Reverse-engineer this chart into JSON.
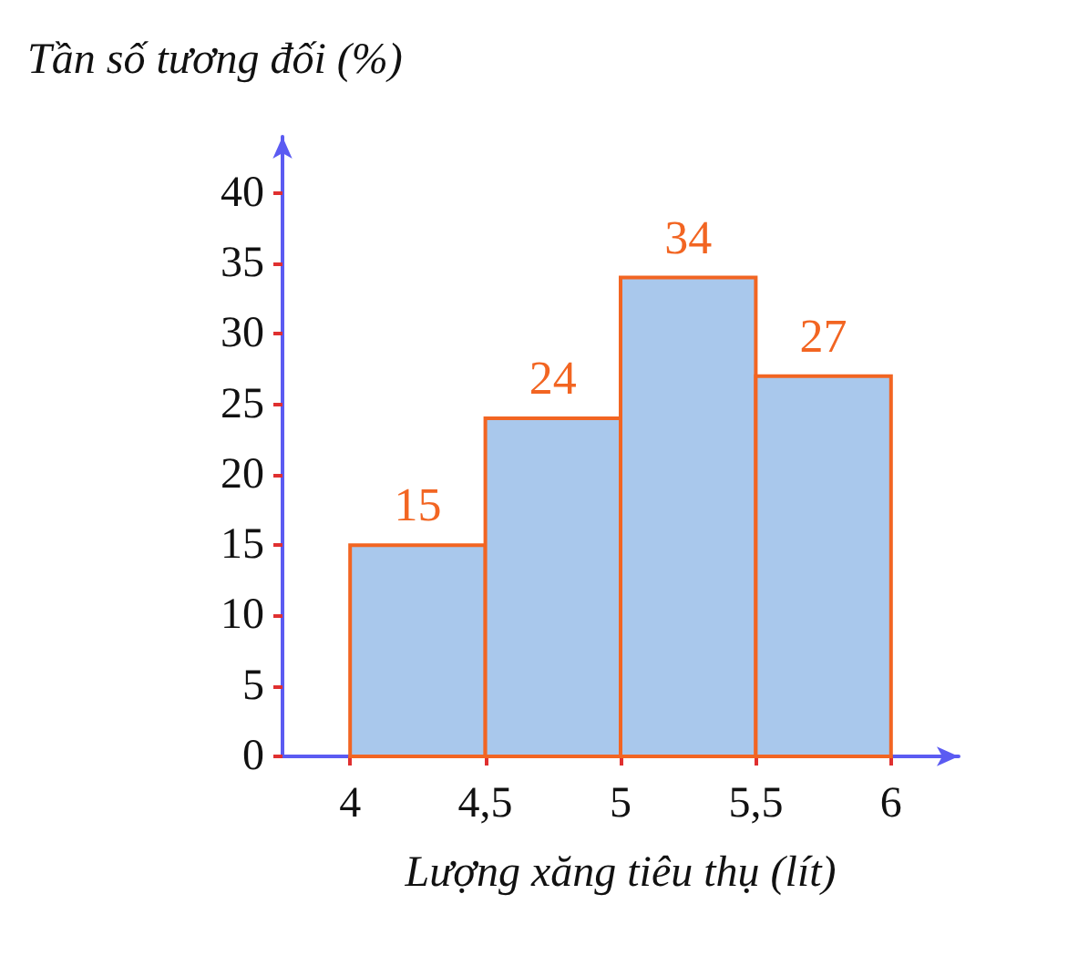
{
  "chart_data": {
    "type": "histogram",
    "ylabel": "Tần số tương đối (%)",
    "xlabel": "Lượng xăng tiêu thụ (lít)",
    "bins": [
      4,
      4.5,
      5,
      5.5,
      6
    ],
    "values": [
      15,
      24,
      34,
      27
    ],
    "color": "#a9c8ec",
    "data_labels": true,
    "xlim": [
      3.75,
      6.25
    ],
    "xticks": [
      4,
      {
        "value": 4.5,
        "label": "4,5"
      },
      5,
      {
        "value": 5.5,
        "label": "5,5"
      },
      6
    ],
    "ylim": [
      0,
      44
    ],
    "yticks": [
      0,
      5,
      10,
      15,
      20,
      25,
      30,
      35,
      40
    ]
  }
}
